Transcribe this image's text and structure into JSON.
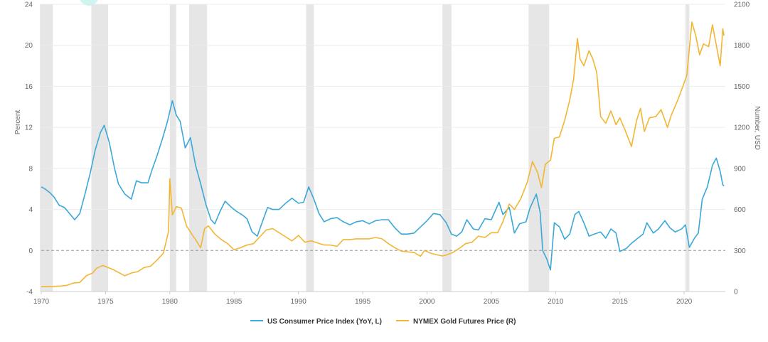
{
  "chart_data": {
    "type": "line",
    "ylabel_left": "Percent",
    "ylabel_right": "Number, USD",
    "xlim": [
      1970,
      2023.2
    ],
    "ylim_left": [
      -4,
      24
    ],
    "ylim_right": [
      0,
      2100
    ],
    "x_ticks": [
      1970,
      1975,
      1980,
      1985,
      1990,
      1995,
      2000,
      2005,
      2010,
      2015,
      2020
    ],
    "y_ticks_left": [
      -4,
      0,
      4,
      8,
      12,
      16,
      20,
      24
    ],
    "y_ticks_right": [
      0,
      300,
      600,
      900,
      1200,
      1500,
      1800,
      2100
    ],
    "grid": true,
    "legend_position": "bottom-center",
    "recessions": [
      [
        1969.9,
        1970.9
      ],
      [
        1973.9,
        1975.2
      ],
      [
        1980.0,
        1980.5
      ],
      [
        1981.5,
        1982.9
      ],
      [
        1990.6,
        1991.2
      ],
      [
        2001.2,
        2001.9
      ],
      [
        2007.9,
        2009.5
      ],
      [
        2020.1,
        2020.4
      ]
    ],
    "series": [
      {
        "name": "US Consumer Price Index (YoY, L)",
        "axis": "left",
        "color": "#3aa8d8",
        "points": [
          [
            1970.0,
            6.2
          ],
          [
            1970.3,
            6.0
          ],
          [
            1970.7,
            5.6
          ],
          [
            1971.0,
            5.2
          ],
          [
            1971.4,
            4.4
          ],
          [
            1971.8,
            4.2
          ],
          [
            1972.2,
            3.6
          ],
          [
            1972.6,
            3.0
          ],
          [
            1973.0,
            3.6
          ],
          [
            1973.4,
            5.5
          ],
          [
            1973.8,
            7.5
          ],
          [
            1974.2,
            9.8
          ],
          [
            1974.6,
            11.5
          ],
          [
            1974.9,
            12.2
          ],
          [
            1975.3,
            10.5
          ],
          [
            1975.7,
            8.0
          ],
          [
            1976.0,
            6.5
          ],
          [
            1976.5,
            5.5
          ],
          [
            1977.0,
            5.0
          ],
          [
            1977.4,
            6.8
          ],
          [
            1977.8,
            6.6
          ],
          [
            1978.3,
            6.6
          ],
          [
            1978.6,
            7.8
          ],
          [
            1979.0,
            9.2
          ],
          [
            1979.4,
            10.8
          ],
          [
            1979.8,
            12.5
          ],
          [
            1980.2,
            14.6
          ],
          [
            1980.5,
            13.2
          ],
          [
            1980.8,
            12.6
          ],
          [
            1981.2,
            10.0
          ],
          [
            1981.6,
            11.0
          ],
          [
            1982.0,
            8.3
          ],
          [
            1982.4,
            6.5
          ],
          [
            1982.8,
            4.5
          ],
          [
            1983.2,
            3.0
          ],
          [
            1983.5,
            2.6
          ],
          [
            1983.9,
            3.8
          ],
          [
            1984.3,
            4.8
          ],
          [
            1984.8,
            4.2
          ],
          [
            1985.2,
            3.8
          ],
          [
            1985.6,
            3.5
          ],
          [
            1986.0,
            3.1
          ],
          [
            1986.4,
            1.8
          ],
          [
            1986.8,
            1.4
          ],
          [
            1987.2,
            2.8
          ],
          [
            1987.6,
            4.2
          ],
          [
            1988.0,
            4.0
          ],
          [
            1988.5,
            4.0
          ],
          [
            1989.0,
            4.6
          ],
          [
            1989.5,
            5.1
          ],
          [
            1990.0,
            4.6
          ],
          [
            1990.4,
            4.7
          ],
          [
            1990.8,
            6.2
          ],
          [
            1991.2,
            5.0
          ],
          [
            1991.6,
            3.6
          ],
          [
            1992.0,
            2.8
          ],
          [
            1992.5,
            3.1
          ],
          [
            1993.0,
            3.2
          ],
          [
            1993.5,
            2.8
          ],
          [
            1994.0,
            2.5
          ],
          [
            1994.5,
            2.8
          ],
          [
            1995.0,
            2.9
          ],
          [
            1995.5,
            2.6
          ],
          [
            1996.0,
            2.9
          ],
          [
            1996.5,
            3.0
          ],
          [
            1997.0,
            3.0
          ],
          [
            1997.5,
            2.2
          ],
          [
            1998.0,
            1.6
          ],
          [
            1998.5,
            1.6
          ],
          [
            1999.0,
            1.7
          ],
          [
            1999.5,
            2.3
          ],
          [
            2000.0,
            2.9
          ],
          [
            2000.5,
            3.6
          ],
          [
            2001.0,
            3.5
          ],
          [
            2001.5,
            2.7
          ],
          [
            2001.9,
            1.6
          ],
          [
            2002.3,
            1.4
          ],
          [
            2002.7,
            1.8
          ],
          [
            2003.1,
            3.0
          ],
          [
            2003.6,
            2.1
          ],
          [
            2004.0,
            2.0
          ],
          [
            2004.5,
            3.1
          ],
          [
            2005.0,
            3.0
          ],
          [
            2005.6,
            4.7
          ],
          [
            2005.9,
            3.5
          ],
          [
            2006.4,
            4.2
          ],
          [
            2006.8,
            1.7
          ],
          [
            2007.2,
            2.6
          ],
          [
            2007.7,
            2.8
          ],
          [
            2008.0,
            4.1
          ],
          [
            2008.5,
            5.5
          ],
          [
            2008.8,
            3.7
          ],
          [
            2009.0,
            0.0
          ],
          [
            2009.3,
            -0.8
          ],
          [
            2009.6,
            -1.9
          ],
          [
            2009.9,
            2.7
          ],
          [
            2010.3,
            2.3
          ],
          [
            2010.7,
            1.1
          ],
          [
            2011.1,
            1.6
          ],
          [
            2011.5,
            3.5
          ],
          [
            2011.8,
            3.8
          ],
          [
            2012.2,
            2.7
          ],
          [
            2012.6,
            1.4
          ],
          [
            2013.0,
            1.6
          ],
          [
            2013.5,
            1.8
          ],
          [
            2013.9,
            1.2
          ],
          [
            2014.3,
            2.1
          ],
          [
            2014.7,
            1.7
          ],
          [
            2015.0,
            -0.1
          ],
          [
            2015.5,
            0.2
          ],
          [
            2015.9,
            0.7
          ],
          [
            2016.3,
            1.1
          ],
          [
            2016.8,
            1.6
          ],
          [
            2017.1,
            2.7
          ],
          [
            2017.6,
            1.7
          ],
          [
            2018.0,
            2.1
          ],
          [
            2018.5,
            2.9
          ],
          [
            2018.9,
            2.2
          ],
          [
            2019.3,
            1.8
          ],
          [
            2019.8,
            2.1
          ],
          [
            2020.1,
            2.5
          ],
          [
            2020.4,
            0.3
          ],
          [
            2020.8,
            1.2
          ],
          [
            2021.1,
            1.7
          ],
          [
            2021.4,
            5.0
          ],
          [
            2021.8,
            6.2
          ],
          [
            2022.2,
            8.3
          ],
          [
            2022.5,
            9.0
          ],
          [
            2022.8,
            7.7
          ],
          [
            2023.0,
            6.4
          ],
          [
            2023.1,
            6.3
          ]
        ]
      },
      {
        "name": "NYMEX Gold Futures Price (R)",
        "axis": "right",
        "color": "#f2b632",
        "points": [
          [
            1970.0,
            36
          ],
          [
            1970.5,
            36
          ],
          [
            1971.0,
            38
          ],
          [
            1971.5,
            40
          ],
          [
            1972.0,
            45
          ],
          [
            1972.5,
            62
          ],
          [
            1973.0,
            66
          ],
          [
            1973.5,
            115
          ],
          [
            1974.0,
            135
          ],
          [
            1974.3,
            170
          ],
          [
            1974.8,
            190
          ],
          [
            1975.2,
            175
          ],
          [
            1975.6,
            160
          ],
          [
            1976.0,
            140
          ],
          [
            1976.5,
            115
          ],
          [
            1977.0,
            135
          ],
          [
            1977.5,
            145
          ],
          [
            1978.0,
            175
          ],
          [
            1978.5,
            185
          ],
          [
            1979.0,
            230
          ],
          [
            1979.5,
            280
          ],
          [
            1979.9,
            440
          ],
          [
            1980.0,
            825
          ],
          [
            1980.2,
            560
          ],
          [
            1980.5,
            620
          ],
          [
            1980.9,
            610
          ],
          [
            1981.3,
            480
          ],
          [
            1981.7,
            420
          ],
          [
            1982.0,
            380
          ],
          [
            1982.4,
            320
          ],
          [
            1982.7,
            460
          ],
          [
            1983.0,
            480
          ],
          [
            1983.5,
            420
          ],
          [
            1984.0,
            380
          ],
          [
            1984.5,
            350
          ],
          [
            1985.0,
            305
          ],
          [
            1985.5,
            320
          ],
          [
            1986.0,
            340
          ],
          [
            1986.5,
            350
          ],
          [
            1987.0,
            400
          ],
          [
            1987.5,
            450
          ],
          [
            1988.0,
            460
          ],
          [
            1988.5,
            430
          ],
          [
            1989.0,
            400
          ],
          [
            1989.5,
            370
          ],
          [
            1990.0,
            410
          ],
          [
            1990.5,
            360
          ],
          [
            1991.0,
            370
          ],
          [
            1991.5,
            355
          ],
          [
            1992.0,
            340
          ],
          [
            1992.5,
            340
          ],
          [
            1993.0,
            330
          ],
          [
            1993.5,
            380
          ],
          [
            1994.0,
            380
          ],
          [
            1994.5,
            385
          ],
          [
            1995.0,
            385
          ],
          [
            1995.5,
            385
          ],
          [
            1996.0,
            395
          ],
          [
            1996.5,
            385
          ],
          [
            1997.0,
            350
          ],
          [
            1997.5,
            320
          ],
          [
            1998.0,
            295
          ],
          [
            1998.5,
            290
          ],
          [
            1999.0,
            285
          ],
          [
            1999.5,
            258
          ],
          [
            1999.8,
            300
          ],
          [
            2000.3,
            280
          ],
          [
            2000.7,
            270
          ],
          [
            2001.2,
            260
          ],
          [
            2001.6,
            270
          ],
          [
            2002.0,
            285
          ],
          [
            2002.5,
            315
          ],
          [
            2003.0,
            350
          ],
          [
            2003.5,
            360
          ],
          [
            2004.0,
            405
          ],
          [
            2004.5,
            395
          ],
          [
            2005.0,
            430
          ],
          [
            2005.5,
            430
          ],
          [
            2005.9,
            510
          ],
          [
            2006.4,
            640
          ],
          [
            2006.8,
            600
          ],
          [
            2007.3,
            680
          ],
          [
            2007.8,
            800
          ],
          [
            2008.2,
            950
          ],
          [
            2008.6,
            870
          ],
          [
            2008.9,
            760
          ],
          [
            2009.2,
            930
          ],
          [
            2009.6,
            960
          ],
          [
            2009.9,
            1120
          ],
          [
            2010.3,
            1130
          ],
          [
            2010.7,
            1250
          ],
          [
            2011.1,
            1400
          ],
          [
            2011.4,
            1550
          ],
          [
            2011.7,
            1850
          ],
          [
            2011.9,
            1700
          ],
          [
            2012.2,
            1650
          ],
          [
            2012.6,
            1760
          ],
          [
            2012.9,
            1700
          ],
          [
            2013.2,
            1600
          ],
          [
            2013.5,
            1280
          ],
          [
            2013.9,
            1230
          ],
          [
            2014.3,
            1320
          ],
          [
            2014.7,
            1220
          ],
          [
            2015.0,
            1270
          ],
          [
            2015.4,
            1180
          ],
          [
            2015.9,
            1060
          ],
          [
            2016.3,
            1250
          ],
          [
            2016.6,
            1340
          ],
          [
            2016.9,
            1170
          ],
          [
            2017.3,
            1270
          ],
          [
            2017.8,
            1280
          ],
          [
            2018.2,
            1330
          ],
          [
            2018.7,
            1200
          ],
          [
            2019.0,
            1290
          ],
          [
            2019.5,
            1400
          ],
          [
            2019.9,
            1500
          ],
          [
            2020.2,
            1580
          ],
          [
            2020.6,
            1970
          ],
          [
            2020.9,
            1870
          ],
          [
            2021.2,
            1730
          ],
          [
            2021.5,
            1810
          ],
          [
            2021.9,
            1790
          ],
          [
            2022.2,
            1950
          ],
          [
            2022.5,
            1800
          ],
          [
            2022.8,
            1650
          ],
          [
            2023.0,
            1920
          ],
          [
            2023.1,
            1870
          ]
        ]
      }
    ]
  }
}
